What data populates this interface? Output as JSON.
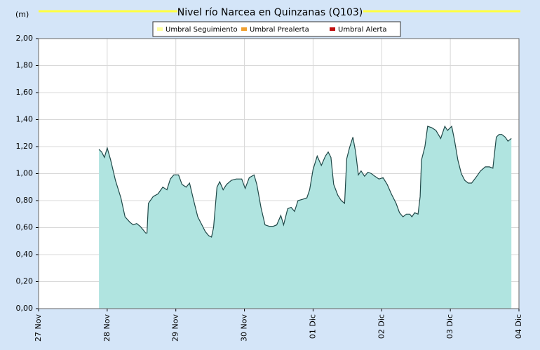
{
  "chart_data": {
    "type": "area",
    "title": "Nivel río Narcea en Quinzanas  (Q103)",
    "y_label": "(m)",
    "legend": [
      {
        "name": "Umbral Seguimiento",
        "color": "#ffffa0"
      },
      {
        "name": "Umbral Prealerta",
        "color": "#f0a030"
      },
      {
        "name": "Umbral Alerta",
        "color": "#c01010"
      }
    ],
    "xlim": [
      0,
      7
    ],
    "xticks": [
      {
        "value": 0,
        "label": "27 Nov"
      },
      {
        "value": 1,
        "label": "28 Nov"
      },
      {
        "value": 2,
        "label": "29 Nov"
      },
      {
        "value": 3,
        "label": "30 Nov"
      },
      {
        "value": 4,
        "label": "01 Dic"
      },
      {
        "value": 5,
        "label": "02 Dic"
      },
      {
        "value": 6,
        "label": "03 Dic"
      },
      {
        "value": 7,
        "label": "04 Dic"
      }
    ],
    "ylim": [
      0,
      2
    ],
    "yticks": [
      {
        "value": 0,
        "label": "0,00"
      },
      {
        "value": 0.2,
        "label": "0,20"
      },
      {
        "value": 0.4,
        "label": "0,40"
      },
      {
        "value": 0.6,
        "label": "0,60"
      },
      {
        "value": 0.8,
        "label": "0,80"
      },
      {
        "value": 1,
        "label": "1,00"
      },
      {
        "value": 1.2,
        "label": "1,20"
      },
      {
        "value": 1.4,
        "label": "1,40"
      },
      {
        "value": 1.6,
        "label": "1,60"
      },
      {
        "value": 1.8,
        "label": "1,80"
      },
      {
        "value": 2,
        "label": "2,00"
      }
    ],
    "grid": true,
    "color": "#b0e4e0",
    "line_color": "#204848",
    "x": [
      0.88,
      0.92,
      0.96,
      1.0,
      1.05,
      1.12,
      1.2,
      1.26,
      1.33,
      1.38,
      1.43,
      1.48,
      1.53,
      1.56,
      1.58,
      1.6,
      1.67,
      1.74,
      1.81,
      1.87,
      1.92,
      1.97,
      2.04,
      2.09,
      2.15,
      2.2,
      2.26,
      2.32,
      2.38,
      2.43,
      2.48,
      2.52,
      2.55,
      2.6,
      2.64,
      2.69,
      2.74,
      2.81,
      2.88,
      2.96,
      3.01,
      3.07,
      3.14,
      3.18,
      3.24,
      3.3,
      3.36,
      3.42,
      3.47,
      3.53,
      3.57,
      3.63,
      3.68,
      3.73,
      3.78,
      3.85,
      3.91,
      3.95,
      4.0,
      4.06,
      4.12,
      4.18,
      4.22,
      4.26,
      4.3,
      4.36,
      4.41,
      4.46,
      4.49,
      4.53,
      4.58,
      4.62,
      4.66,
      4.7,
      4.75,
      4.8,
      4.85,
      4.9,
      4.96,
      5.02,
      5.08,
      5.14,
      5.21,
      5.26,
      5.31,
      5.36,
      5.41,
      5.44,
      5.48,
      5.53,
      5.56,
      5.58,
      5.63,
      5.67,
      5.73,
      5.79,
      5.86,
      5.92,
      5.96,
      6.02,
      6.06,
      6.11,
      6.16,
      6.21,
      6.26,
      6.31,
      6.37,
      6.44,
      6.51,
      6.57,
      6.62,
      6.67,
      6.71,
      6.75,
      6.8,
      6.84,
      6.89
    ],
    "values": [
      1.18,
      1.16,
      1.12,
      1.19,
      1.1,
      0.95,
      0.82,
      0.68,
      0.64,
      0.62,
      0.63,
      0.61,
      0.58,
      0.56,
      0.56,
      0.78,
      0.83,
      0.85,
      0.9,
      0.88,
      0.96,
      0.99,
      0.99,
      0.92,
      0.9,
      0.93,
      0.8,
      0.68,
      0.62,
      0.57,
      0.54,
      0.53,
      0.6,
      0.9,
      0.94,
      0.88,
      0.92,
      0.95,
      0.96,
      0.96,
      0.89,
      0.97,
      0.99,
      0.92,
      0.75,
      0.62,
      0.61,
      0.61,
      0.62,
      0.69,
      0.62,
      0.74,
      0.75,
      0.72,
      0.8,
      0.81,
      0.82,
      0.88,
      1.03,
      1.13,
      1.06,
      1.13,
      1.16,
      1.12,
      0.92,
      0.84,
      0.8,
      0.78,
      1.11,
      1.19,
      1.27,
      1.16,
      0.99,
      1.02,
      0.98,
      1.01,
      1.0,
      0.98,
      0.96,
      0.97,
      0.92,
      0.85,
      0.78,
      0.71,
      0.68,
      0.7,
      0.7,
      0.68,
      0.71,
      0.7,
      0.83,
      1.1,
      1.2,
      1.35,
      1.34,
      1.32,
      1.26,
      1.35,
      1.32,
      1.35,
      1.25,
      1.1,
      1.0,
      0.95,
      0.93,
      0.93,
      0.97,
      1.02,
      1.05,
      1.05,
      1.04,
      1.27,
      1.29,
      1.29,
      1.27,
      1.24,
      1.26
    ]
  }
}
